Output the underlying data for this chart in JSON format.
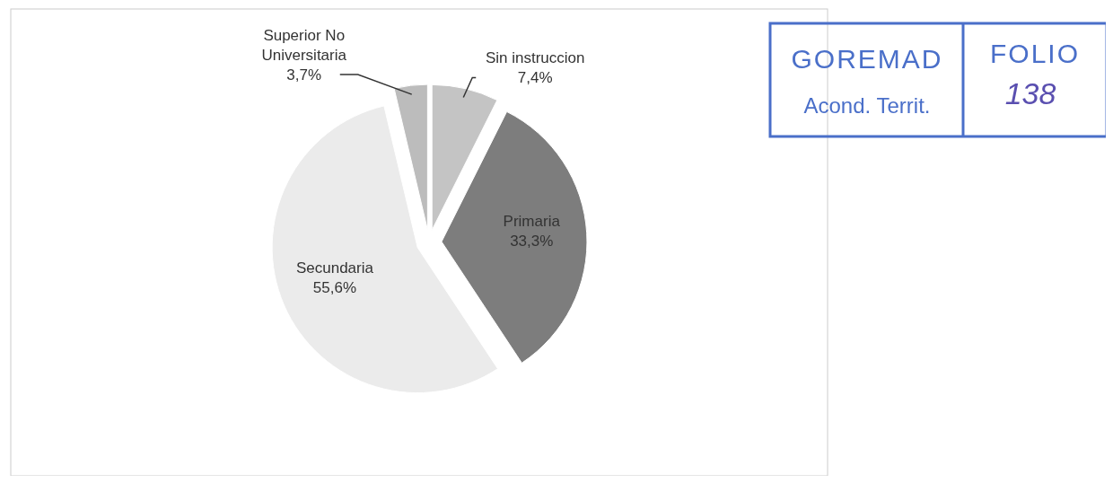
{
  "chart_data": {
    "type": "pie",
    "categories": [
      "Sin instruccion",
      "Primaria",
      "Secundaria",
      "Superior No Universitaria"
    ],
    "values": [
      7.4,
      33.3,
      55.6,
      3.7
    ],
    "value_labels": [
      "7,4%",
      "33,3%",
      "55,6%",
      "3,7%"
    ],
    "colors": [
      "#c4c4c4",
      "#7d7d7d",
      "#ebebeb",
      "#bcbcbc"
    ],
    "annotations": [
      "GOREMAD",
      "Acond. Territ.",
      "FOLIO",
      "138"
    ]
  }
}
